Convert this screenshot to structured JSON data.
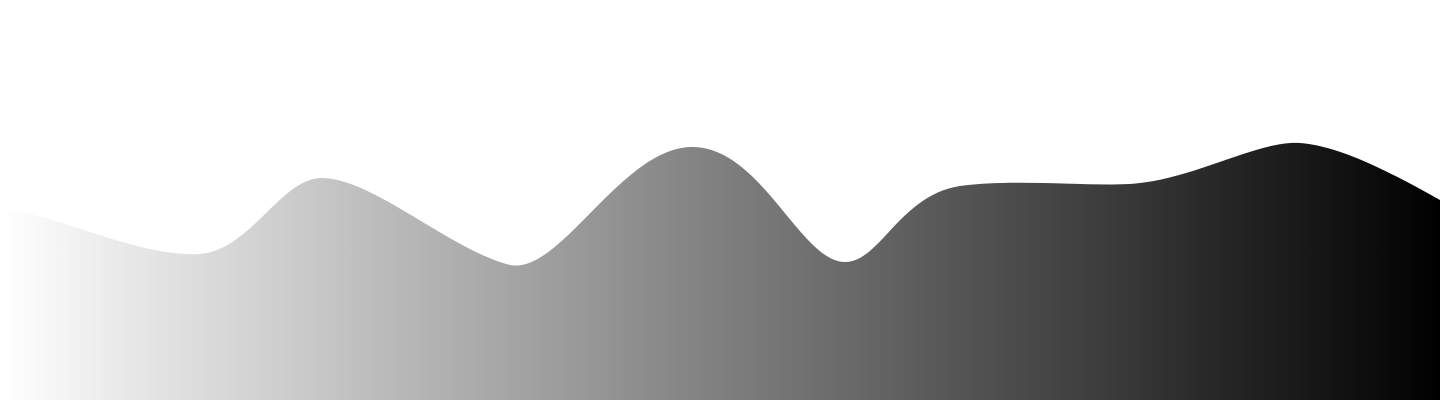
{
  "background": {
    "color": "#ffffff"
  },
  "wave": {
    "icon": "wave-shape",
    "gradient_start_color": "#ffffff",
    "gradient_end_color": "#000000",
    "gradient_direction": "left-to-right"
  }
}
